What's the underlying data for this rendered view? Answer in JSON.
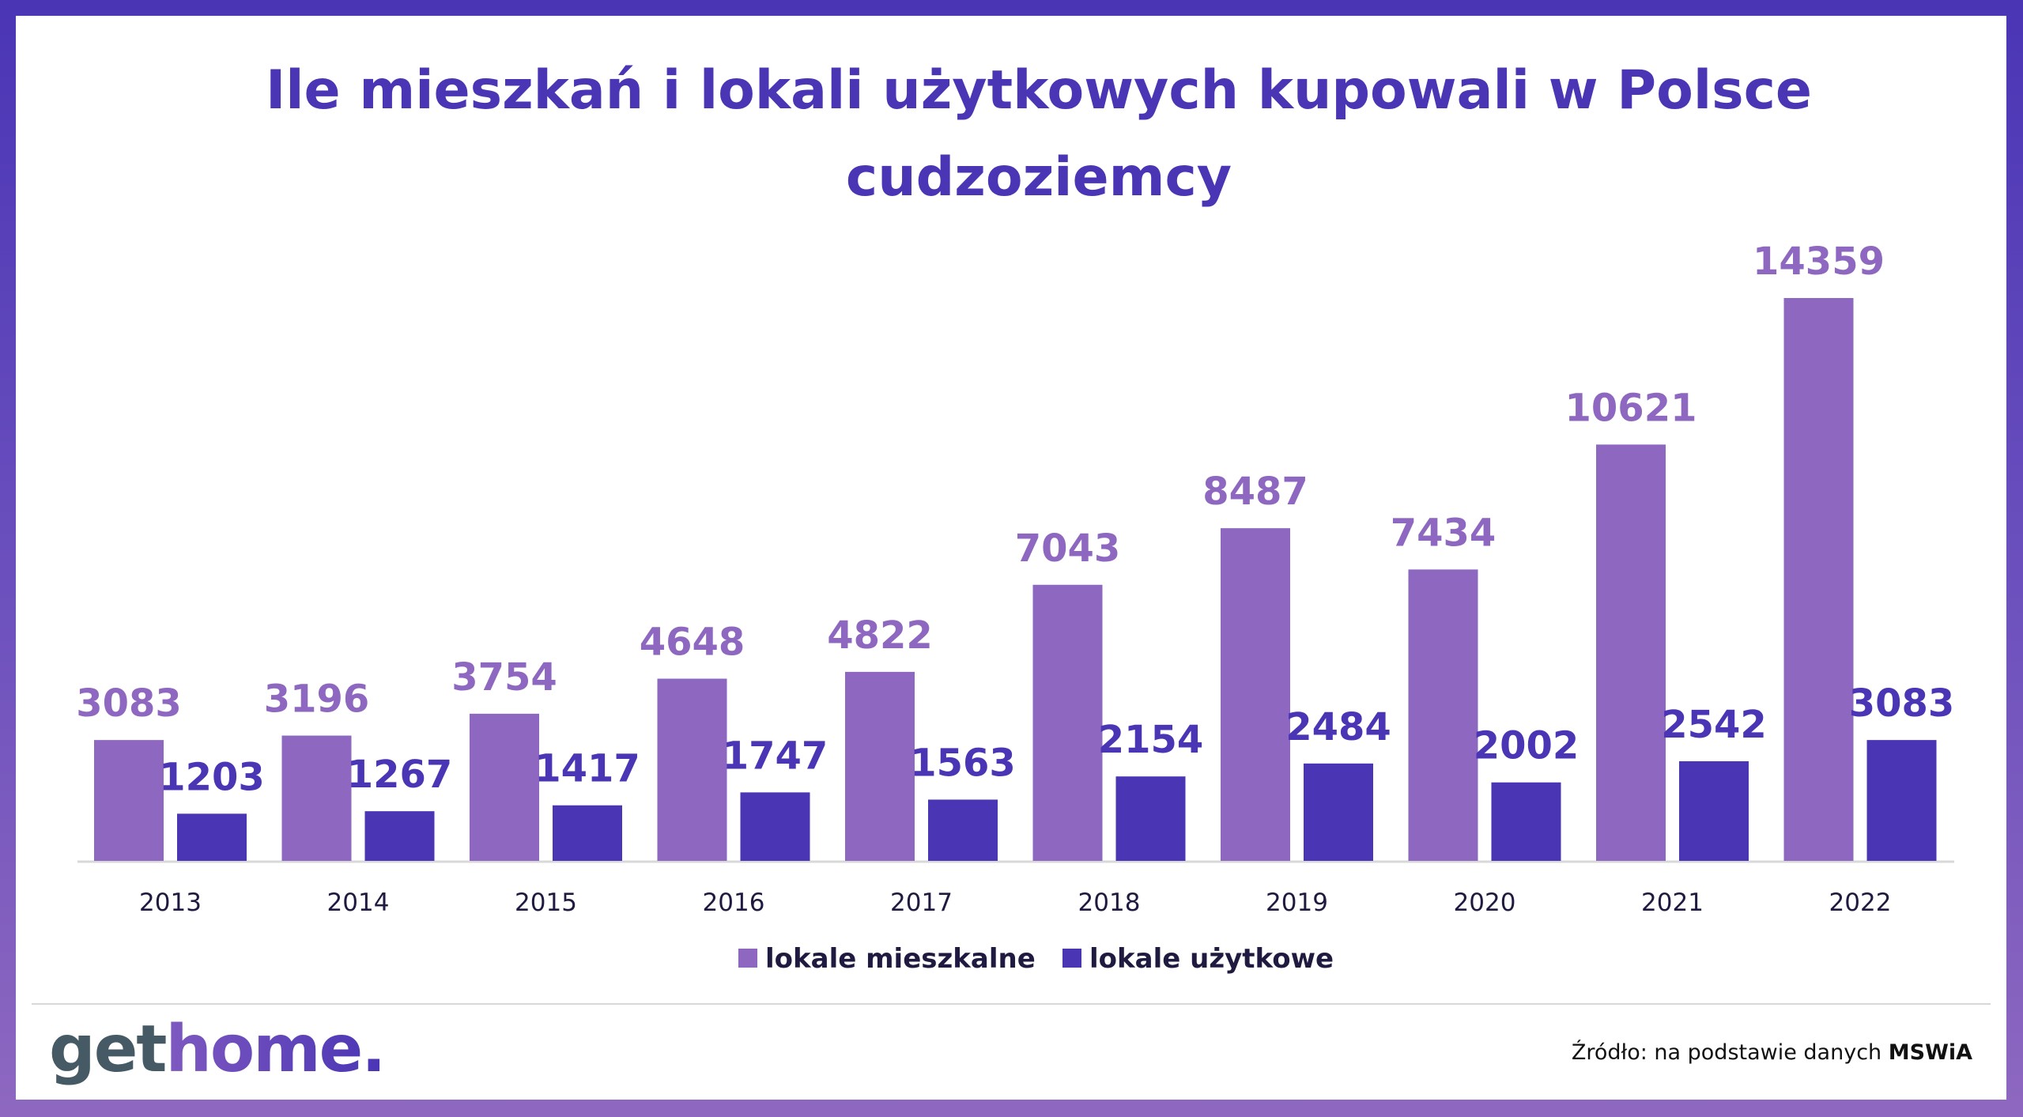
{
  "colors": {
    "mieszkalne": "#8e68c0",
    "uzytkowe": "#4a35b5",
    "logo_get": "#455a64"
  },
  "chart_data": {
    "type": "bar",
    "title": "Ile mieszkań i lokali użytkowych kupowali w Polsce cudzoziemcy",
    "title_lines": [
      "Ile mieszkań i lokali użytkowych kupowali w Polsce",
      "cudzoziemcy"
    ],
    "categories": [
      "2013",
      "2014",
      "2015",
      "2016",
      "2017",
      "2018",
      "2019",
      "2020",
      "2021",
      "2022"
    ],
    "series": [
      {
        "name": "lokale mieszkalne",
        "values": [
          3083,
          3196,
          3754,
          4648,
          4822,
          7043,
          8487,
          7434,
          10621,
          14359
        ]
      },
      {
        "name": "lokale użytkowe",
        "values": [
          1203,
          1267,
          1417,
          1747,
          1563,
          2154,
          2484,
          2002,
          2542,
          3083
        ]
      }
    ],
    "xlabel": "",
    "ylabel": "",
    "ylim": [
      0,
      14359
    ],
    "grid": false,
    "legend_position": "bottom"
  },
  "footer": {
    "logo_part1": "get",
    "logo_part2": "home.",
    "source_prefix": "Źródło: na podstawie danych ",
    "source_bold": "MSWiA"
  }
}
